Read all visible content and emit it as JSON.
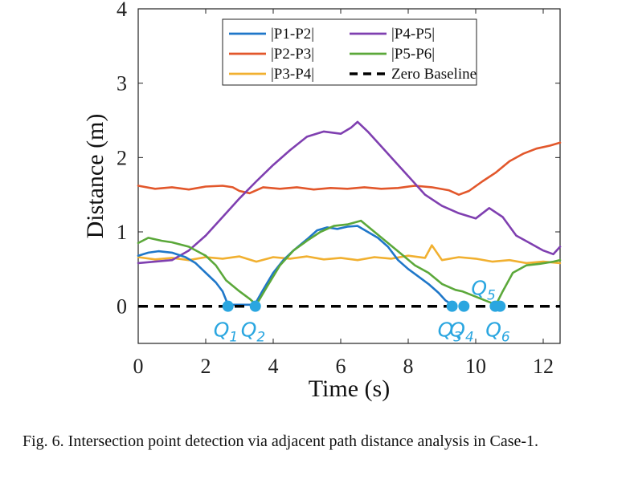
{
  "chart_data": {
    "type": "line",
    "xlabel": "Time (s)",
    "ylabel": "Distance (m)",
    "xlim": [
      0,
      12.5
    ],
    "ylim": [
      -0.5,
      4
    ],
    "xticks": [
      0,
      2,
      4,
      6,
      8,
      10,
      12
    ],
    "yticks": [
      0,
      1,
      2,
      3,
      4
    ],
    "legend_position": "top-right",
    "series": [
      {
        "name": "|P1-P2|",
        "color": "#1f77c9",
        "dashed": false,
        "x": [
          0,
          0.3,
          0.6,
          1.0,
          1.4,
          1.7,
          2.0,
          2.3,
          2.5,
          2.66,
          3.45,
          3.7,
          4.0,
          4.3,
          4.6,
          5.0,
          5.3,
          5.6,
          5.9,
          6.2,
          6.5,
          6.8,
          7.1,
          7.4,
          7.7,
          8.0,
          8.3,
          8.6,
          8.9,
          9.1,
          9.3
        ],
        "y": [
          0.68,
          0.72,
          0.74,
          0.72,
          0.66,
          0.58,
          0.45,
          0.32,
          0.2,
          0.02,
          0.02,
          0.22,
          0.45,
          0.62,
          0.75,
          0.9,
          1.02,
          1.06,
          1.04,
          1.07,
          1.08,
          1.0,
          0.92,
          0.8,
          0.62,
          0.5,
          0.4,
          0.3,
          0.18,
          0.08,
          0.02
        ]
      },
      {
        "name": "|P2-P3|",
        "color": "#e2572b",
        "dashed": false,
        "x": [
          0,
          0.5,
          1.0,
          1.5,
          2.0,
          2.5,
          2.8,
          3.0,
          3.3,
          3.7,
          4.2,
          4.7,
          5.2,
          5.7,
          6.2,
          6.7,
          7.2,
          7.7,
          8.2,
          8.7,
          9.2,
          9.5,
          9.8,
          10.2,
          10.6,
          11.0,
          11.4,
          11.8,
          12.2,
          12.5
        ],
        "y": [
          1.62,
          1.58,
          1.6,
          1.57,
          1.61,
          1.62,
          1.6,
          1.55,
          1.52,
          1.6,
          1.58,
          1.6,
          1.57,
          1.59,
          1.58,
          1.6,
          1.58,
          1.59,
          1.62,
          1.6,
          1.56,
          1.5,
          1.55,
          1.68,
          1.8,
          1.95,
          2.05,
          2.12,
          2.16,
          2.2
        ]
      },
      {
        "name": "|P3-P4|",
        "color": "#f1b030",
        "dashed": false,
        "x": [
          0,
          0.5,
          1.0,
          1.5,
          2.0,
          2.5,
          3.0,
          3.5,
          4.0,
          4.5,
          5.0,
          5.5,
          6.0,
          6.5,
          7.0,
          7.5,
          8.0,
          8.5,
          8.7,
          9.0,
          9.5,
          10.0,
          10.5,
          11.0,
          11.5,
          12.0,
          12.5
        ],
        "y": [
          0.66,
          0.63,
          0.65,
          0.62,
          0.66,
          0.64,
          0.67,
          0.6,
          0.66,
          0.64,
          0.67,
          0.63,
          0.65,
          0.62,
          0.66,
          0.64,
          0.68,
          0.65,
          0.82,
          0.62,
          0.66,
          0.64,
          0.6,
          0.62,
          0.58,
          0.6,
          0.58
        ]
      },
      {
        "name": "|P4-P5|",
        "color": "#7f3fb0",
        "dashed": false,
        "x": [
          0,
          0.5,
          1.0,
          1.5,
          2.0,
          2.5,
          3.0,
          3.5,
          4.0,
          4.5,
          5.0,
          5.5,
          6.0,
          6.3,
          6.5,
          6.8,
          7.2,
          7.6,
          8.0,
          8.5,
          9.0,
          9.5,
          10.0,
          10.4,
          10.8,
          11.2,
          11.6,
          12.0,
          12.3,
          12.5
        ],
        "y": [
          0.58,
          0.6,
          0.62,
          0.75,
          0.95,
          1.2,
          1.45,
          1.68,
          1.9,
          2.1,
          2.28,
          2.35,
          2.32,
          2.4,
          2.48,
          2.35,
          2.15,
          1.95,
          1.75,
          1.5,
          1.35,
          1.25,
          1.18,
          1.32,
          1.2,
          0.95,
          0.85,
          0.75,
          0.7,
          0.8
        ]
      },
      {
        "name": "|P5-P6|",
        "color": "#5ba83a",
        "dashed": false,
        "x": [
          0,
          0.3,
          0.7,
          1.0,
          1.5,
          2.0,
          2.3,
          2.6,
          3.0,
          3.3,
          3.5,
          3.8,
          4.2,
          4.6,
          5.0,
          5.4,
          5.8,
          6.2,
          6.6,
          7.0,
          7.4,
          7.8,
          8.2,
          8.6,
          9.0,
          9.4,
          9.6,
          10.6,
          10.8,
          11.1,
          11.5,
          11.9,
          12.3,
          12.5
        ],
        "y": [
          0.85,
          0.92,
          0.88,
          0.86,
          0.8,
          0.68,
          0.55,
          0.35,
          0.2,
          0.1,
          0.02,
          0.25,
          0.55,
          0.75,
          0.88,
          1.0,
          1.08,
          1.1,
          1.15,
          1.0,
          0.85,
          0.7,
          0.55,
          0.45,
          0.3,
          0.22,
          0.2,
          0.02,
          0.2,
          0.45,
          0.55,
          0.57,
          0.6,
          0.62
        ]
      },
      {
        "name": "Zero Baseline",
        "color": "#000000",
        "dashed": true,
        "x": [
          0,
          12.5
        ],
        "y": [
          0,
          0
        ]
      }
    ],
    "points": [
      {
        "label": "Q",
        "sub": "1",
        "x": 2.66,
        "y": 0,
        "label_side": "below"
      },
      {
        "label": "Q",
        "sub": "2",
        "x": 3.47,
        "y": 0,
        "label_side": "below"
      },
      {
        "label": "Q",
        "sub": "3",
        "x": 9.3,
        "y": 0,
        "label_side": "below"
      },
      {
        "label": "Q",
        "sub": "4",
        "x": 9.65,
        "y": 0,
        "label_side": "below"
      },
      {
        "label": "Q",
        "sub": "5",
        "x": 10.58,
        "y": 0,
        "label_side": "above"
      },
      {
        "label": "Q",
        "sub": "6",
        "x": 10.72,
        "y": 0,
        "label_side": "below"
      }
    ],
    "point_color": "#2aa6e0"
  },
  "caption": "Fig. 6.  Intersection point detection via adjacent path distance analysis in Case-1."
}
